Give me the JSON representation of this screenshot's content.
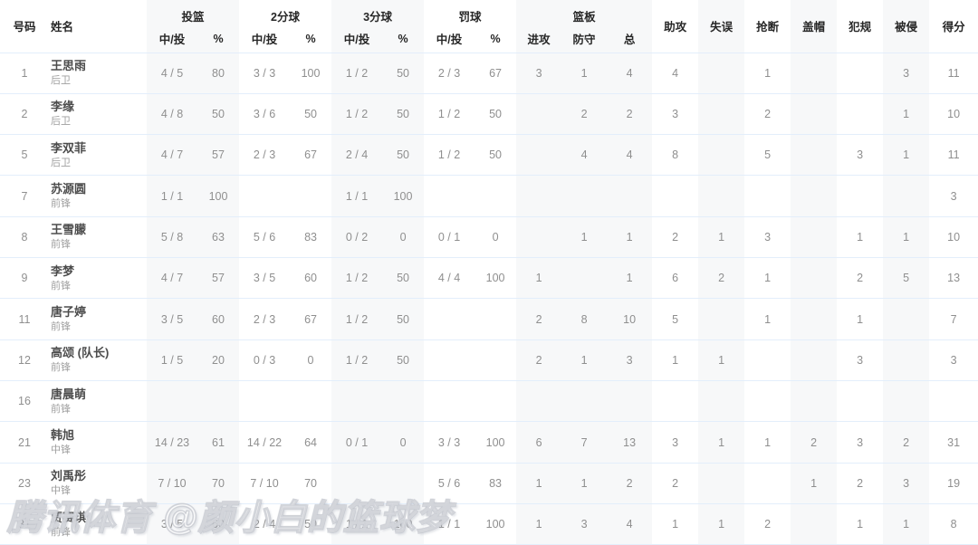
{
  "watermark": "腾讯体育 @颜小白的篮球梦",
  "colors": {
    "row_divider": "#e3eefb",
    "column_shade": "#f7f8f9"
  },
  "table": {
    "header": {
      "number": "号码",
      "name": "姓名",
      "groups": [
        {
          "label": "投篮",
          "subs": [
            "中/投",
            "%"
          ]
        },
        {
          "label": "2分球",
          "subs": [
            "中/投",
            "%"
          ]
        },
        {
          "label": "3分球",
          "subs": [
            "中/投",
            "%"
          ]
        },
        {
          "label": "罚球",
          "subs": [
            "中/投",
            "%"
          ]
        },
        {
          "label": "篮板",
          "subs": [
            "进攻",
            "防守",
            "总"
          ]
        }
      ],
      "singles": [
        "助攻",
        "失误",
        "抢断",
        "盖帽",
        "犯规",
        "被侵",
        "得分"
      ]
    },
    "rows": [
      {
        "number": "1",
        "name": "王思雨",
        "position": "后卫",
        "stats": [
          "4 / 5",
          "80",
          "3 / 3",
          "100",
          "1 / 2",
          "50",
          "2 / 3",
          "67",
          "3",
          "1",
          "4",
          "4",
          "",
          "1",
          "",
          "",
          "3",
          "11"
        ]
      },
      {
        "number": "2",
        "name": "李缘",
        "position": "后卫",
        "stats": [
          "4 / 8",
          "50",
          "3 / 6",
          "50",
          "1 / 2",
          "50",
          "1 / 2",
          "50",
          "",
          "2",
          "2",
          "3",
          "",
          "2",
          "",
          "",
          "1",
          "10"
        ]
      },
      {
        "number": "5",
        "name": "李双菲",
        "position": "后卫",
        "stats": [
          "4 / 7",
          "57",
          "2 / 3",
          "67",
          "2 / 4",
          "50",
          "1 / 2",
          "50",
          "",
          "4",
          "4",
          "8",
          "",
          "5",
          "",
          "3",
          "1",
          "11"
        ]
      },
      {
        "number": "7",
        "name": "苏源圆",
        "position": "前锋",
        "stats": [
          "1 / 1",
          "100",
          "",
          "",
          "1 / 1",
          "100",
          "",
          "",
          "",
          "",
          "",
          "",
          "",
          "",
          "",
          "",
          "",
          "3"
        ]
      },
      {
        "number": "8",
        "name": "王雪朦",
        "position": "前锋",
        "stats": [
          "5 / 8",
          "63",
          "5 / 6",
          "83",
          "0 / 2",
          "0",
          "0 / 1",
          "0",
          "",
          "1",
          "1",
          "2",
          "1",
          "3",
          "",
          "1",
          "1",
          "10"
        ]
      },
      {
        "number": "9",
        "name": "李梦",
        "position": "前锋",
        "stats": [
          "4 / 7",
          "57",
          "3 / 5",
          "60",
          "1 / 2",
          "50",
          "4 / 4",
          "100",
          "1",
          "",
          "1",
          "6",
          "2",
          "1",
          "",
          "2",
          "5",
          "13"
        ]
      },
      {
        "number": "11",
        "name": "唐子婷",
        "position": "前锋",
        "stats": [
          "3 / 5",
          "60",
          "2 / 3",
          "67",
          "1 / 2",
          "50",
          "",
          "",
          "2",
          "8",
          "10",
          "5",
          "",
          "1",
          "",
          "1",
          "",
          "7"
        ]
      },
      {
        "number": "12",
        "name": "高颂 (队长)",
        "position": "前锋",
        "stats": [
          "1 / 5",
          "20",
          "0 / 3",
          "0",
          "1 / 2",
          "50",
          "",
          "",
          "2",
          "1",
          "3",
          "1",
          "1",
          "",
          "",
          "3",
          "",
          "3"
        ]
      },
      {
        "number": "16",
        "name": "唐晨萌",
        "position": "前锋",
        "stats": [
          "",
          "",
          "",
          "",
          "",
          "",
          "",
          "",
          "",
          "",
          "",
          "",
          "",
          "",
          "",
          "",
          "",
          ""
        ]
      },
      {
        "number": "21",
        "name": "韩旭",
        "position": "中锋",
        "stats": [
          "14 / 23",
          "61",
          "14 / 22",
          "64",
          "0 / 1",
          "0",
          "3 / 3",
          "100",
          "6",
          "7",
          "13",
          "3",
          "1",
          "1",
          "2",
          "3",
          "2",
          "31"
        ]
      },
      {
        "number": "23",
        "name": "刘禹彤",
        "position": "中锋",
        "stats": [
          "7 / 10",
          "70",
          "7 / 10",
          "70",
          "",
          "",
          "5 / 6",
          "83",
          "1",
          "1",
          "2",
          "2",
          "",
          "",
          "1",
          "2",
          "3",
          "19"
        ]
      },
      {
        "number": "31",
        "name": "贾赛琪",
        "position": "前锋",
        "stats": [
          "3 / 5",
          "60",
          "2 / 4",
          "50",
          "1 / 1",
          "100",
          "1 / 1",
          "100",
          "1",
          "3",
          "4",
          "1",
          "1",
          "2",
          "",
          "1",
          "1",
          "8"
        ]
      }
    ]
  }
}
